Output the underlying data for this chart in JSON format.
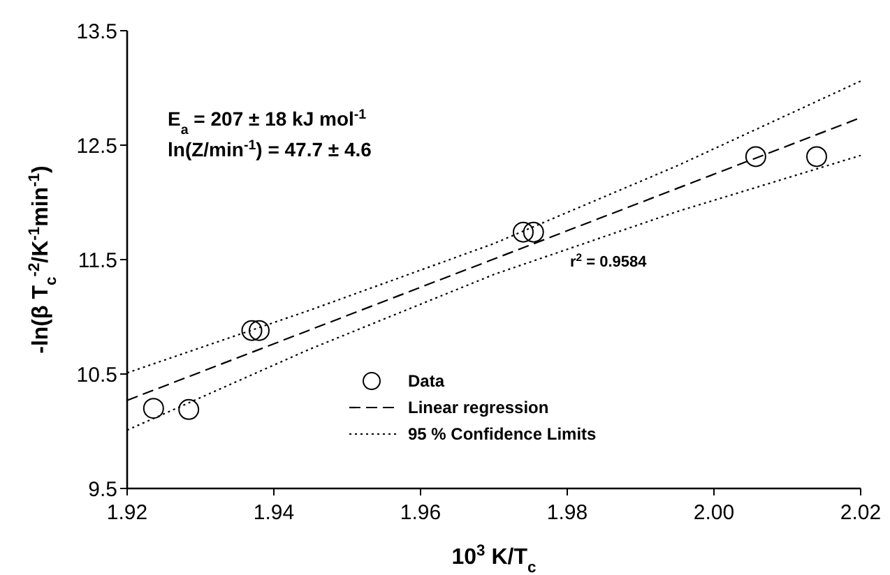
{
  "chart_data": {
    "type": "scatter",
    "xlabel": "10$^{3}$ K/T$_{c}$",
    "ylabel": "-ln(β T$_{c}$$^{-2}$/K$^{-1}$min$^{-1}$)",
    "xlim": [
      1.92,
      2.02
    ],
    "xticks": [
      {
        "value": 1.92,
        "label": "1.92"
      },
      {
        "value": 1.94,
        "label": "1.94"
      },
      {
        "value": 1.96,
        "label": "1.96"
      },
      {
        "value": 1.98,
        "label": "1.98"
      },
      {
        "value": 2.0,
        "label": "2.00"
      },
      {
        "value": 2.02,
        "label": "2.02"
      }
    ],
    "ylim": [
      9.5,
      13.5
    ],
    "yticks": [
      9.5,
      10.5,
      11.5,
      12.5,
      13.5
    ],
    "grid": false,
    "legend": "bottom",
    "annotations": [
      "E$_{a}$ = 207 ± 18 kJ mol$^{-1}$",
      "ln(Z/min$^{-1}$) = 47.7 ± 4.6",
      "r$^{2}$ = 0.9584"
    ],
    "series": [
      {
        "name": "Data",
        "marker": "circle",
        "color": "#000000",
        "x": [
          1.9236,
          1.9284,
          1.937,
          1.938,
          1.974,
          1.9754,
          2.0057,
          2.014
        ],
        "values": [
          10.2,
          10.19,
          10.88,
          10.88,
          11.74,
          11.74,
          12.4,
          12.4
        ]
      },
      {
        "name": "Linear regression",
        "type": "line",
        "line_style": "dashed",
        "color": "#000000",
        "x": [
          1.92,
          2.02
        ],
        "values": [
          10.27,
          12.74
        ]
      },
      {
        "name": "95 % Confidence Limits",
        "type": "line",
        "line_style": "dotted",
        "color": "#000000",
        "x": [
          1.92,
          1.945,
          1.97,
          1.995,
          2.02
        ],
        "values": [
          10.51,
          11.06,
          11.64,
          12.32,
          13.06
        ]
      },
      {
        "type": "line",
        "line_style": "dotted",
        "color": "#000000",
        "x": [
          1.92,
          1.945,
          1.97,
          1.995,
          2.02
        ],
        "values": [
          10.01,
          10.72,
          11.37,
          11.92,
          12.41
        ]
      }
    ]
  }
}
